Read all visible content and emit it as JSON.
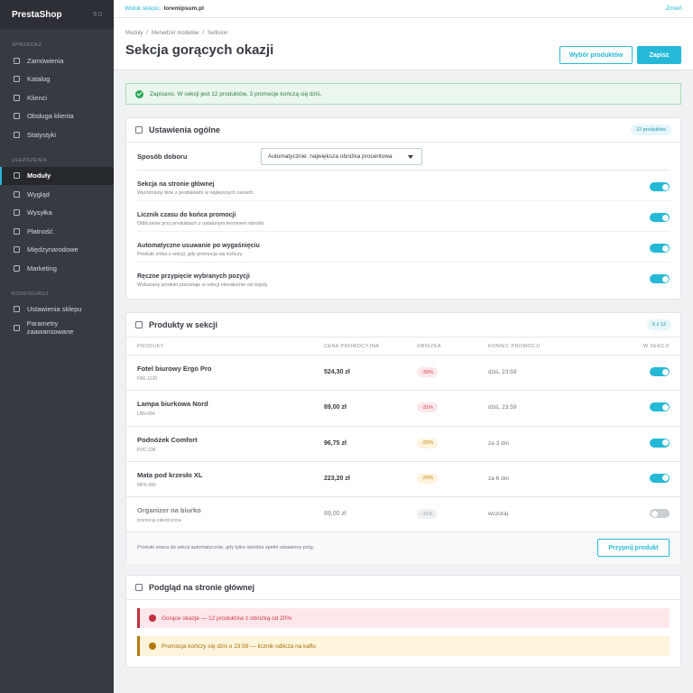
{
  "sidebar": {
    "brand": "PrestaShop",
    "version": "9.0",
    "sections": [
      {
        "title": "SPRZEDAŻ",
        "items": [
          "Zamówienia",
          "Katalog",
          "Klienci",
          "Obsługa klienta",
          "Statystyki"
        ]
      },
      {
        "title": "ULEPSZENIA",
        "items": [
          "Moduły",
          "Wygląd",
          "Wysyłka",
          "Płatność",
          "Międzynarodowe",
          "Marketing"
        ]
      },
      {
        "title": "KONFIGURUJ",
        "items": [
          "Ustawienia sklepu",
          "Parametry zaawansowane"
        ]
      }
    ]
  },
  "topbar": {
    "label": "Widok sklepu:",
    "shop": "loremipsum.pl",
    "change": "Zmień"
  },
  "header": {
    "breadcrumb": [
      "Moduły",
      "Menedżer modułów",
      "Sellision"
    ],
    "title": "Sekcja gorących okazji",
    "buttons": [
      "Wybór produktów",
      "Zapisz"
    ]
  },
  "alert": "Zapisano. W sekcji jest 12 produktów, 3 promocje kończą się dziś.",
  "settings": {
    "title": "Ustawienia ogólne",
    "badge": "12 produktów",
    "select_label": "Sposób doboru",
    "select_value": "Automatycznie: największa obniżka procentowa",
    "toggles": [
      {
        "title": "Sekcja na stronie głównej",
        "desc": "Wyróżniony blok z produktami w najlepszych cenach.",
        "enabled": true
      },
      {
        "title": "Licznik czasu do końca promocji",
        "desc": "Odliczanie przy produktach z ustalonym terminem obniżki.",
        "enabled": true
      },
      {
        "title": "Automatyczne usuwanie po wygaśnięciu",
        "desc": "Produkt znika z sekcji, gdy promocja się kończy.",
        "enabled": true
      },
      {
        "title": "Ręczne przypięcie wybranych pozycji",
        "desc": "Wskazany produkt pozostaje w sekcji niezależnie od reguły.",
        "enabled": true
      }
    ]
  },
  "products": {
    "title": "Produkty w sekcji",
    "badge": "5 z 12",
    "columns": [
      "PRODUKT",
      "CENA PROMOCYJNA",
      "OBNIŻKA",
      "KONIEC PROMOCJI",
      "W SEKCJI"
    ],
    "rows": [
      {
        "name": "Fotel biurowy Ergo Pro",
        "sku": "FBE-1120",
        "price": "524,30 zł",
        "discount": "-30%",
        "tone": "danger",
        "end": "dziś, 23:59",
        "enabled": true
      },
      {
        "name": "Lampa biurkowa Nord",
        "sku": "LBN-084",
        "price": "89,00 zł",
        "discount": "-31%",
        "tone": "danger",
        "end": "dziś, 23:59",
        "enabled": true
      },
      {
        "name": "Podnóżek Comfort",
        "sku": "PDC-238",
        "price": "96,75 zł",
        "discount": "-25%",
        "tone": "warning",
        "end": "za 3 dni",
        "enabled": true
      },
      {
        "name": "Mata pod krzesło XL",
        "sku": "MPK-980",
        "price": "223,20 zł",
        "discount": "-20%",
        "tone": "warning",
        "end": "za 6 dni",
        "enabled": true
      },
      {
        "name": "Organizer na biurko",
        "sku": "promocja zakończona",
        "price": "89,00 zł",
        "discount": "-11%",
        "tone": "muted",
        "end": "wczoraj",
        "enabled": false
      }
    ],
    "footer": "Produkt wraca do sekcji automatycznie, gdy tylko obniżka spełni ustawiony próg.",
    "button": "Przypnij produkt"
  },
  "preview": {
    "title": "Podgląd na stronie głównej",
    "alerts": [
      {
        "text": "Gorące okazje — 12 produktów z obniżką od 20%",
        "tone": "danger"
      },
      {
        "text": "Promocja kończy się dziś o 23:59 — licznik odlicza na kaflu",
        "tone": "warning"
      }
    ]
  }
}
